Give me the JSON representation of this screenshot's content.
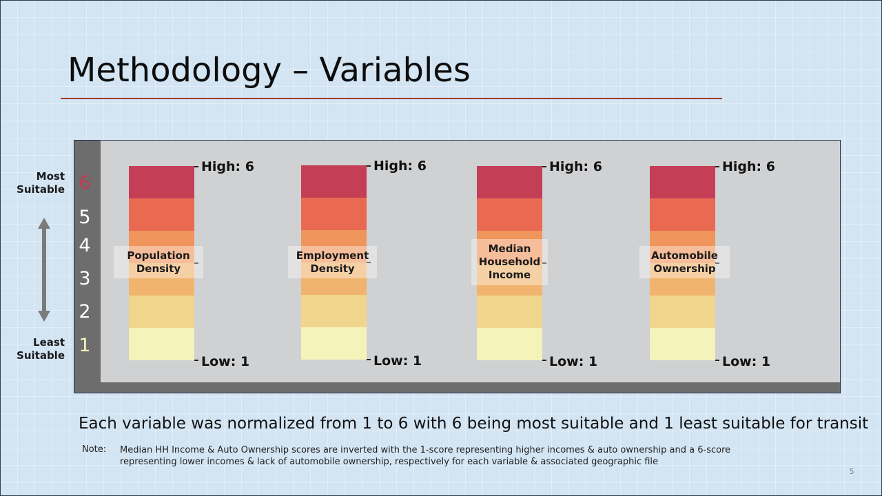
{
  "slide": {
    "title": "Methodology – Variables",
    "caption": "Each variable was normalized from 1 to 6 with 6 being most suitable and 1 least suitable for transit",
    "note_label": "Note:",
    "note_text": "Median HH Income & Auto Ownership scores are inverted with the 1-score representing higher incomes & auto ownership and a 6-score representing lower incomes & lack of automobile ownership, respectively for each variable & associated geographic file",
    "page_number": "5"
  },
  "scale": {
    "most_label": "Most\nSuitable",
    "least_label": "Least\nSuitable",
    "numbers": [
      "6",
      "5",
      "4",
      "3",
      "2",
      "1"
    ],
    "number_colors": [
      "#c23c55",
      "#ffffff",
      "#ffffff",
      "#ffffff",
      "#ffffff",
      "#f4f3b8"
    ]
  },
  "colors": {
    "segments": [
      "#c43e56",
      "#e96a51",
      "#f0955c",
      "#f1b46f",
      "#f0d58c",
      "#f4f3ba"
    ],
    "title_rule": "#a23a1c"
  },
  "variables": [
    {
      "name": "Population\nDensity",
      "high": "High: 6",
      "low": "Low: 1"
    },
    {
      "name": "Employment\nDensity",
      "high": "High: 6",
      "low": "Low: 1"
    },
    {
      "name": "Median\nHousehold\nIncome",
      "high": "High: 6",
      "low": "Low: 1"
    },
    {
      "name": "Automobile\nOwnership",
      "high": "High: 6",
      "low": "Low: 1"
    }
  ]
}
